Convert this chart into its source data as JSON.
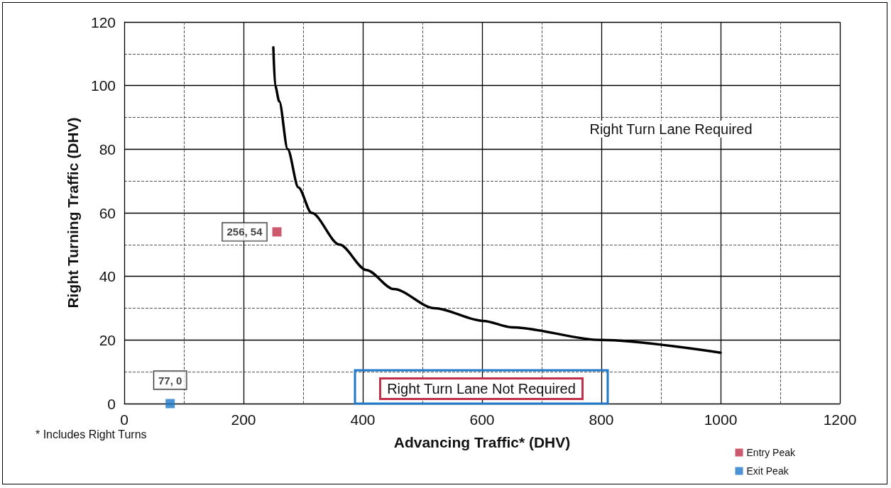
{
  "chart_data": {
    "type": "line",
    "xlabel": "Advancing Traffic* (DHV)",
    "ylabel": "Right Turning Traffic (DHV)",
    "xlim": [
      0,
      1200
    ],
    "xticks": [
      0,
      {
        "value": 100,
        "label": null
      },
      200,
      {
        "value": 300,
        "label": null
      },
      400,
      {
        "value": 500,
        "label": null
      },
      600,
      {
        "value": 700,
        "label": null
      },
      800,
      {
        "value": 900,
        "label": null
      },
      1000,
      {
        "value": 1100,
        "label": null
      },
      1200
    ],
    "ylim": [
      0,
      120
    ],
    "yticks": [
      0,
      {
        "value": 10,
        "label": null
      },
      20,
      {
        "value": 30,
        "label": null
      },
      40,
      {
        "value": 50,
        "label": null
      },
      60,
      {
        "value": 70,
        "label": null
      },
      80,
      {
        "value": 90,
        "label": null
      },
      100,
      {
        "value": 110,
        "label": null
      },
      120
    ],
    "grid": true,
    "legend": "bottom right",
    "marker": "square",
    "series": [
      {
        "color": "#000000",
        "marker": "none",
        "x": [
          250,
          253,
          260,
          274,
          292,
          314,
          361,
          406,
          452,
          520,
          602,
          650,
          800,
          1000
        ],
        "values": [
          112,
          100,
          95,
          80,
          68,
          60,
          50,
          42,
          36,
          30,
          26,
          24,
          20,
          16
        ]
      },
      {
        "type": "scatter",
        "name": "Entry Peak",
        "color": "#c0304a",
        "x": [
          256
        ],
        "values": [
          54
        ],
        "value_labels": [
          "256, 54"
        ]
      },
      {
        "type": "scatter",
        "name": "Exit Peak",
        "color": "#1f78c8",
        "x": [
          77
        ],
        "values": [
          0
        ],
        "value_labels": [
          "77, 0"
        ]
      }
    ],
    "annotations": [
      "Right Turn Lane Required",
      "Right Turn Lane Not Required",
      "* Includes Right Turns"
    ]
  }
}
